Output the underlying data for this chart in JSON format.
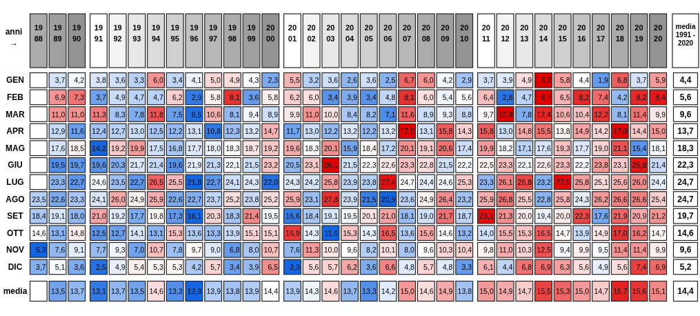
{
  "chart_data": {
    "type": "heatmap",
    "xlabel": "anni →",
    "categories": [
      "1988",
      "1989",
      "1990",
      "1991",
      "1992",
      "1993",
      "1994",
      "1995",
      "1996",
      "1997",
      "1998",
      "1999",
      "2000",
      "2001",
      "2002",
      "2003",
      "2004",
      "2005",
      "2006",
      "2007",
      "2008",
      "2009",
      "2010",
      "2011",
      "2012",
      "2013",
      "2014",
      "2015",
      "2016",
      "2017",
      "2018",
      "2019",
      "2020",
      "media 1991 - 2020"
    ],
    "y_categories": [
      "GEN",
      "FEB",
      "MAR",
      "APR",
      "MAG",
      "GIU",
      "LUG",
      "AGO",
      "SET",
      "OTT",
      "NOV",
      "DIC",
      "media"
    ],
    "cells": [
      [
        null,
        3.7,
        4.2,
        3.8,
        3.6,
        3.3,
        6.0,
        3.4,
        4.1,
        5.0,
        4.9,
        4.3,
        2.3,
        5.5,
        3.2,
        3.6,
        2.6,
        3.6,
        2.5,
        6.7,
        6.0,
        4.2,
        2.9,
        3.7,
        3.9,
        4.9,
        8.2,
        5.8,
        4.4,
        1.9,
        6.8,
        3.7,
        5.9,
        4.4
      ],
      [
        null,
        6.9,
        7.3,
        3.7,
        4.9,
        4.7,
        4.7,
        6.2,
        2.9,
        5.8,
        8.1,
        3.6,
        5.8,
        6.2,
        6.0,
        3.4,
        3.9,
        3.4,
        4.8,
        8.1,
        6.0,
        5.4,
        5.6,
        6.4,
        2.8,
        4.7,
        8.7,
        6.5,
        8.2,
        7.4,
        4.2,
        8.2,
        8.4,
        5.6
      ],
      [
        null,
        11.0,
        11.0,
        11.3,
        8.3,
        7.8,
        11.8,
        7.5,
        6.5,
        10.6,
        8.1,
        9.4,
        8.9,
        9.9,
        11.0,
        10.0,
        8.4,
        8.2,
        7.1,
        11.6,
        8.9,
        9.3,
        8.8,
        9.7,
        12.9,
        7.8,
        12.4,
        10.6,
        10.4,
        12.2,
        8.1,
        11.4,
        9.9,
        9.6
      ],
      [
        null,
        12.9,
        11.6,
        12.4,
        12.7,
        13.0,
        12.5,
        12.2,
        13.1,
        10.8,
        12.3,
        13.2,
        14.7,
        11.7,
        13.0,
        12.2,
        13.2,
        12.2,
        13.2,
        17.0,
        13.1,
        15.8,
        14.3,
        15.8,
        13.0,
        14.8,
        15.5,
        13.8,
        14.9,
        14.2,
        17.0,
        14.4,
        15.0,
        13.7
      ],
      [
        null,
        17.6,
        18.5,
        14.2,
        19.2,
        19.9,
        17.5,
        16.8,
        17.7,
        18.0,
        18.3,
        18.7,
        19.2,
        19.6,
        18.3,
        20.1,
        15.9,
        18.4,
        17.2,
        20.1,
        19.1,
        20.6,
        17.4,
        19.9,
        18.2,
        17.1,
        17.6,
        19.3,
        17.7,
        19.0,
        21.1,
        15.4,
        18.1,
        18.3
      ],
      [
        null,
        19.5,
        19.7,
        19.6,
        20.3,
        21.7,
        21.4,
        19.6,
        21.9,
        21.3,
        22.1,
        21.5,
        23.2,
        20.5,
        23.1,
        26.1,
        21.5,
        22.3,
        22.6,
        23.3,
        22.8,
        21.5,
        22.2,
        22.5,
        23.3,
        22.1,
        22.6,
        23.3,
        22.2,
        23.8,
        23.1,
        25.8,
        21.4,
        22.3
      ],
      [
        null,
        23.3,
        22.7,
        24.6,
        23.5,
        22.7,
        26.5,
        25.5,
        21.8,
        22.7,
        24.1,
        24.3,
        22.0,
        24.3,
        24.2,
        25.8,
        23.9,
        23.8,
        27.4,
        24.7,
        24.4,
        24.6,
        25.3,
        23.3,
        26.1,
        26.8,
        23.2,
        27.5,
        25.8,
        25.1,
        25.6,
        26.0,
        24.4,
        24.7
      ],
      [
        23.5,
        22.6,
        23.3,
        24.1,
        26.0,
        24.9,
        25.9,
        22.6,
        22.7,
        23.7,
        25.2,
        23.8,
        25.2,
        25.9,
        23.1,
        27.8,
        23.9,
        21.5,
        20.9,
        23.6,
        24.9,
        26.4,
        23.2,
        25.9,
        26.8,
        25.5,
        22.8,
        25.8,
        24.3,
        26.2,
        26.6,
        26.6,
        25.4,
        24.7
      ],
      [
        18.4,
        19.1,
        18.0,
        21.0,
        19.2,
        17.7,
        19.8,
        17.3,
        16.1,
        20.3,
        18.3,
        21.4,
        19.5,
        16.6,
        18.4,
        19.1,
        19.5,
        20.1,
        21.0,
        18.1,
        19.0,
        21.7,
        18.7,
        23.1,
        21.3,
        20.0,
        19.4,
        20.0,
        22.3,
        17.6,
        21.9,
        20.9,
        21.2,
        19.7
      ],
      [
        14.6,
        13.1,
        14.8,
        12.5,
        12.7,
        14.1,
        13.1,
        15.3,
        13.6,
        13.3,
        13.9,
        15.1,
        15.1,
        16.9,
        14.3,
        11.6,
        15.3,
        14.3,
        16.5,
        13.6,
        15.6,
        14.6,
        13.2,
        14.0,
        15.5,
        15.3,
        16.5,
        14.7,
        13.9,
        14.9,
        17.0,
        16.2,
        14.7,
        14.6
      ],
      [
        5.3,
        7.6,
        9.1,
        7.7,
        9.3,
        7.0,
        10.7,
        7.8,
        9.7,
        9.0,
        6.8,
        8.0,
        10.7,
        7.6,
        11.3,
        10.0,
        9.6,
        8.2,
        10.1,
        8.0,
        9.6,
        10.3,
        10.4,
        9.8,
        11.0,
        10.3,
        12.5,
        9.4,
        9.9,
        9.5,
        11.4,
        11.4,
        9.9,
        9.6
      ],
      [
        3.7,
        5.1,
        3.6,
        2.5,
        4.9,
        5.4,
        5.3,
        5.3,
        4.2,
        5.7,
        3.4,
        3.9,
        6.5,
        2.3,
        5.6,
        5.7,
        6.2,
        3.6,
        6.6,
        4.8,
        5.7,
        4.8,
        3.3,
        6.1,
        4.4,
        6.8,
        6.9,
        6.3,
        5.6,
        4.9,
        5.6,
        7.4,
        6.9,
        5.2
      ],
      [
        null,
        13.5,
        13.7,
        13.1,
        13.7,
        13.5,
        14.6,
        13.3,
        12.9,
        13.9,
        13.8,
        13.9,
        14.4,
        13.9,
        14.3,
        14.6,
        13.7,
        13.3,
        14.2,
        15.0,
        14.6,
        14.9,
        13.8,
        15.0,
        14.9,
        14.7,
        15.5,
        15.3,
        15.0,
        14.7,
        15.7,
        15.6,
        15.1,
        14.4
      ]
    ],
    "cell_labels": [
      [
        null,
        "3,7",
        "4,2",
        "3,8",
        "3,6",
        "3,3",
        "6,0",
        "3,4",
        "4,1",
        "5,0",
        "4,9",
        "4,3",
        "2,3",
        "5,5",
        "3,2",
        "3,6",
        "2,6",
        "3,6",
        "2,5",
        "6,7",
        "6,0",
        "4,2",
        "2,9",
        "3,7",
        "3,9",
        "4,9",
        "8,2",
        "5,8",
        "4,4",
        "1,9",
        "6,8",
        "3,7",
        "5,9",
        "4,4"
      ],
      [
        null,
        "6,9",
        "7,3",
        "3,7",
        "4,9",
        "4,7",
        "4,7",
        "6,2",
        "2,9",
        "5,8",
        "8,1",
        "3,6",
        "5,8",
        "6,2",
        "6,0",
        "3,4",
        "3,9",
        "3,4",
        "4,8",
        "8,1",
        "6,0",
        "5,4",
        "5,6",
        "6,4",
        "2,8",
        "4,7",
        "8,7",
        "6,5",
        "8,2",
        "7,4",
        "4,2",
        "8,2",
        "8,4",
        "5,6"
      ],
      [
        null,
        "11,0",
        "11,0",
        "11,3",
        "8,3",
        "7,8",
        "11,8",
        "7,5",
        "6,5",
        "10,6",
        "8,1",
        "9,4",
        "8,9",
        "9,9",
        "11,0",
        "10,0",
        "8,4",
        "8,2",
        "7,1",
        "11,6",
        "8,9",
        "9,3",
        "8,8",
        "9,7",
        "12,9",
        "7,8",
        "12,4",
        "10,6",
        "10,4",
        "12,2",
        "8,1",
        "11,4",
        "9,9",
        "9,6"
      ],
      [
        null,
        "12,9",
        "11,6",
        "12,4",
        "12,7",
        "13,0",
        "12,5",
        "12,2",
        "13,1",
        "10,8",
        "12,3",
        "13,2",
        "14,7",
        "11,7",
        "13,0",
        "12,2",
        "13,2",
        "12,2",
        "13,2",
        "17,0",
        "13,1",
        "15,8",
        "14,3",
        "15,8",
        "13,0",
        "14,8",
        "15,5",
        "13,8",
        "14,9",
        "14,2",
        "17,0",
        "14,4",
        "15,0",
        "13,7"
      ],
      [
        null,
        "17,6",
        "18,5",
        "14,2",
        "19,2",
        "19,9",
        "17,5",
        "16,8",
        "17,7",
        "18,0",
        "18,3",
        "18,7",
        "19,2",
        "19,6",
        "18,3",
        "20,1",
        "15,9",
        "18,4",
        "17,2",
        "20,1",
        "19,1",
        "20,6",
        "17,4",
        "19,9",
        "18,2",
        "17,1",
        "17,6",
        "19,3",
        "17,7",
        "19,0",
        "21,1",
        "15,4",
        "18,1",
        "18,3"
      ],
      [
        null,
        "19,5",
        "19,7",
        "19,6",
        "20,3",
        "21,7",
        "21,4",
        "19,6",
        "21,9",
        "21,3",
        "22,1",
        "21,5",
        "23,2",
        "20,5",
        "23,1",
        "26,1",
        "21,5",
        "22,3",
        "22,6",
        "23,3",
        "22,8",
        "21,5",
        "22,2",
        "22,5",
        "23,3",
        "22,1",
        "22,6",
        "23,3",
        "22,2",
        "23,8",
        "23,1",
        "25,8",
        "21,4",
        "22,3"
      ],
      [
        null,
        "23,3",
        "22,7",
        "24,6",
        "23,5",
        "22,7",
        "26,5",
        "25,5",
        "21,8",
        "22,7",
        "24,1",
        "24,3",
        "22,0",
        "24,3",
        "24,2",
        "25,8",
        "23,9",
        "23,8",
        "27,4",
        "24,7",
        "24,4",
        "24,6",
        "25,3",
        "23,3",
        "26,1",
        "26,8",
        "23,2",
        "27,5",
        "25,8",
        "25,1",
        "25,6",
        "26,0",
        "24,4",
        "24,7"
      ],
      [
        "23,5",
        "22,6",
        "23,3",
        "24,1",
        "26,0",
        "24,9",
        "25,9",
        "22,6",
        "22,7",
        "23,7",
        "25,2",
        "23,8",
        "25,2",
        "25,9",
        "23,1",
        "27,8",
        "23,9",
        "21,5",
        "20,9",
        "23,6",
        "24,9",
        "26,4",
        "23,2",
        "25,9",
        "26,8",
        "25,5",
        "22,8",
        "25,8",
        "24,3",
        "26,2",
        "26,6",
        "26,6",
        "25,4",
        "24,7"
      ],
      [
        "18,4",
        "19,1",
        "18,0",
        "21,0",
        "19,2",
        "17,7",
        "19,8",
        "17,3",
        "16,1",
        "20,3",
        "18,3",
        "21,4",
        "19,5",
        "16,6",
        "18,4",
        "19,1",
        "19,5",
        "20,1",
        "21,0",
        "18,1",
        "19,0",
        "21,7",
        "18,7",
        "23,1",
        "21,3",
        "20,0",
        "19,4",
        "20,0",
        "22,3",
        "17,6",
        "21,9",
        "20,9",
        "21,2",
        "19,7"
      ],
      [
        "14,6",
        "13,1",
        "14,8",
        "12,5",
        "12,7",
        "14,1",
        "13,1",
        "15,3",
        "13,6",
        "13,3",
        "13,9",
        "15,1",
        "15,1",
        "16,9",
        "14,3",
        "11,6",
        "15,3",
        "14,3",
        "16,5",
        "13,6",
        "15,6",
        "14,6",
        "13,2",
        "14,0",
        "15,5",
        "15,3",
        "16,5",
        "14,7",
        "13,9",
        "14,9",
        "17,0",
        "16,2",
        "14,7",
        "14,6"
      ],
      [
        "5,3",
        "7,6",
        "9,1",
        "7,7",
        "9,3",
        "7,0",
        "10,7",
        "7,8",
        "9,7",
        "9,0",
        "6,8",
        "8,0",
        "10,7",
        "7,6",
        "11,3",
        "10,0",
        "9,6",
        "8,2",
        "10,1",
        "8,0",
        "9,6",
        "10,3",
        "10,4",
        "9,8",
        "11,0",
        "10,3",
        "12,5",
        "9,4",
        "9,9",
        "9,5",
        "11,4",
        "11,4",
        "9,9",
        "9,6"
      ],
      [
        "3,7",
        "5,1",
        "3,6",
        "2,5",
        "4,9",
        "5,4",
        "5,3",
        "5,3",
        "4,2",
        "5,7",
        "3,4",
        "3,9",
        "6,5",
        "2,3",
        "5,6",
        "5,7",
        "6,2",
        "3,6",
        "6,6",
        "4,8",
        "5,7",
        "4,8",
        "3,3",
        "6,1",
        "4,4",
        "6,8",
        "6,9",
        "6,3",
        "5,6",
        "4,9",
        "5,6",
        "7,4",
        "6,9",
        "5,2"
      ],
      [
        null,
        "13,5",
        "13,7",
        "13,1",
        "13,7",
        "13,5",
        "14,6",
        "13,3",
        "12,9",
        "13,9",
        "13,8",
        "13,9",
        "14,4",
        "13,9",
        "14,3",
        "14,6",
        "13,7",
        "13,3",
        "14,2",
        "15,0",
        "14,6",
        "14,9",
        "13,8",
        "15,0",
        "14,9",
        "14,7",
        "15,5",
        "15,3",
        "15,0",
        "14,7",
        "15,7",
        "15,6",
        "15,1",
        "14,4"
      ]
    ]
  }
}
